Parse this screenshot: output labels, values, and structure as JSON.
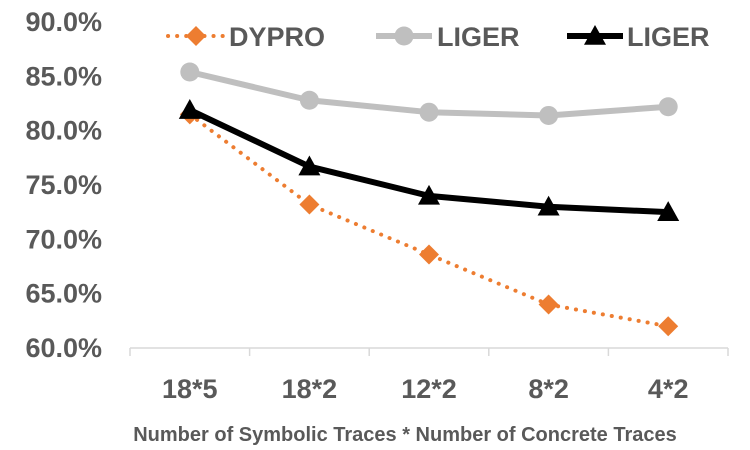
{
  "chart_data": {
    "type": "line",
    "title": "",
    "xlabel": "Number of Symbolic Traces * Number of Concrete Traces",
    "ylabel": "",
    "categories": [
      "18*5",
      "18*2",
      "12*2",
      "8*2",
      "4*2"
    ],
    "ylim": [
      60,
      90
    ],
    "yticks": [
      60,
      65,
      70,
      75,
      80,
      85,
      90
    ],
    "ytick_format": "percent_1dp",
    "grid": false,
    "legend_position": "top",
    "series": [
      {
        "name": "DYPRO",
        "values": [
          81.5,
          73.2,
          68.6,
          64.0,
          62.0
        ],
        "color": "#ED7D31",
        "line_style": "dotted",
        "marker": "diamond"
      },
      {
        "name": "LIGER",
        "values": [
          85.4,
          82.8,
          81.7,
          81.4,
          82.2
        ],
        "color": "#BFBFBF",
        "line_style": "solid",
        "marker": "circle"
      },
      {
        "name": "LIGER",
        "values": [
          81.9,
          76.7,
          74.0,
          73.0,
          72.5
        ],
        "color": "#000000",
        "line_style": "solid",
        "marker": "triangle"
      }
    ]
  }
}
